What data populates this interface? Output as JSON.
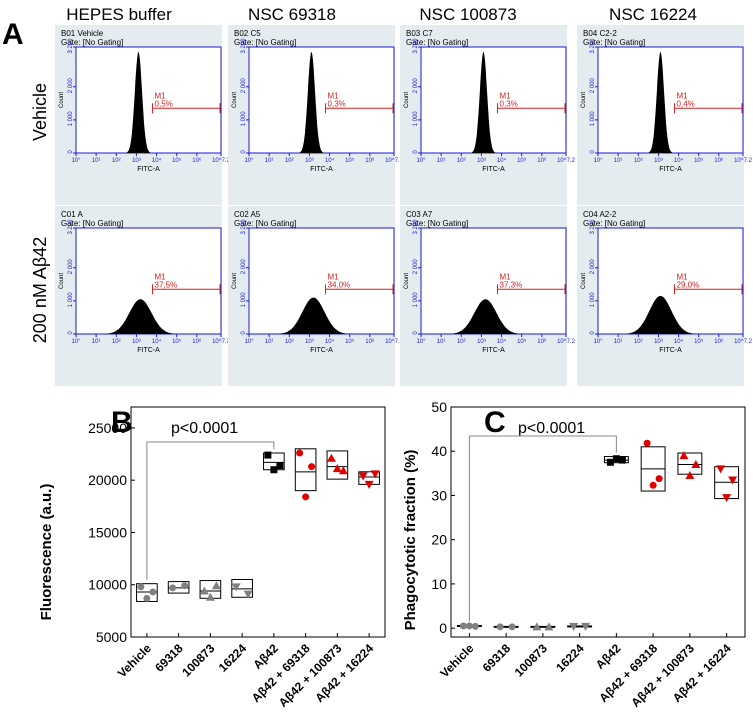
{
  "figure": {
    "panel_a_label": "A",
    "panel_b_label": "B",
    "panel_c_label": "C",
    "column_titles": [
      "HEPES buffer",
      "NSC 69318",
      "NSC 100873",
      "NSC 16224"
    ],
    "row_titles": [
      "Vehicle",
      "200 nM Aβ42"
    ]
  },
  "colors": {
    "panel_bg": "#e4ecef",
    "axis_blue": "#1a1ad8",
    "marker_red": "#d42020",
    "histogram_fill": "#000000",
    "gray_points": "#808080",
    "black_points": "#000000",
    "red_points": "#e00000"
  },
  "chart_data": [
    {
      "type": "histogram",
      "panel": "A",
      "xlabel": "FITC-A",
      "ylabel": "Count",
      "gate_text": "Gate: [No Gating]",
      "marker_label": "M1",
      "xlim_log10": [
        0,
        7.2
      ],
      "x_ticks": [
        "10°",
        "10¹",
        "10²",
        "10³",
        "10⁴",
        "10⁵",
        "10⁶",
        "10^7.2"
      ],
      "ylim": [
        0,
        3200
      ],
      "y_ticks": [
        "0",
        "1 000",
        "2 000",
        "3 200"
      ],
      "rows": [
        {
          "condition": "Vehicle",
          "wells": [
            {
              "title": "B01 Vehicle",
              "m1_percent": "0,5%",
              "peak_log10": 3.1,
              "width": 0.18,
              "height": 3050
            },
            {
              "title": "B02 C5",
              "m1_percent": "0,3%",
              "peak_log10": 3.1,
              "width": 0.18,
              "height": 3050
            },
            {
              "title": "B03 C7",
              "m1_percent": "0,3%",
              "peak_log10": 3.1,
              "width": 0.18,
              "height": 3050
            },
            {
              "title": "B04 C2-2",
              "m1_percent": "0,4%",
              "peak_log10": 3.1,
              "width": 0.18,
              "height": 3050
            }
          ]
        },
        {
          "condition": "200 nM Aβ42",
          "wells": [
            {
              "title": "C01 A",
              "m1_percent": "37,5%",
              "peak_log10": 3.2,
              "width": 0.55,
              "height": 1050
            },
            {
              "title": "C02 A5",
              "m1_percent": "34,0%",
              "peak_log10": 3.2,
              "width": 0.55,
              "height": 1100
            },
            {
              "title": "C03 A7",
              "m1_percent": "37,3%",
              "peak_log10": 3.2,
              "width": 0.55,
              "height": 1050
            },
            {
              "title": "C04 A2-2",
              "m1_percent": "29,0%",
              "peak_log10": 3.1,
              "width": 0.55,
              "height": 1150
            }
          ]
        }
      ],
      "m1_gate_range_log10": [
        3.8,
        7.2
      ]
    },
    {
      "type": "box",
      "panel": "B",
      "ylabel": "Fluorescence (a.u.)",
      "ylim": [
        5000,
        27000
      ],
      "y_ticks": [
        5000,
        10000,
        15000,
        20000,
        25000
      ],
      "categories": [
        "Vehicle",
        "69318",
        "100873",
        "16224",
        "Aβ42",
        "Aβ42 + 69318",
        "Aβ42 + 100873",
        "Aβ42 + 16224"
      ],
      "annotation": "p<0.0001",
      "boxes": [
        {
          "q1": 8400,
          "median": 9300,
          "q3": 10100,
          "points": [
            9800,
            9300,
            8700
          ],
          "marker": "circle",
          "color": "gray"
        },
        {
          "q1": 9200,
          "median": 9700,
          "q3": 10300,
          "points": [
            9700,
            9900
          ],
          "marker": "circle",
          "color": "gray"
        },
        {
          "q1": 8700,
          "median": 9400,
          "q3": 10400,
          "points": [
            9400,
            9900,
            8800
          ],
          "marker": "triangle",
          "color": "gray"
        },
        {
          "q1": 8800,
          "median": 9600,
          "q3": 10500,
          "points": [
            9800,
            9100
          ],
          "marker": "triangle-down",
          "color": "gray"
        },
        {
          "q1": 21000,
          "median": 21700,
          "q3": 22600,
          "points": [
            22400,
            21400,
            21000
          ],
          "marker": "square",
          "color": "black"
        },
        {
          "q1": 19000,
          "median": 20800,
          "q3": 23000,
          "points": [
            22600,
            21300,
            18400
          ],
          "marker": "circle",
          "color": "red"
        },
        {
          "q1": 20100,
          "median": 21300,
          "q3": 22800,
          "points": [
            22100,
            20900,
            21100
          ],
          "marker": "triangle",
          "color": "red"
        },
        {
          "q1": 19600,
          "median": 20300,
          "q3": 20800,
          "points": [
            20400,
            20600,
            19600
          ],
          "marker": "triangle-down",
          "color": "red"
        }
      ]
    },
    {
      "type": "box",
      "panel": "C",
      "ylabel": "Phagocytotic fraction (%)",
      "ylim": [
        -2,
        50
      ],
      "y_ticks": [
        0,
        10,
        20,
        30,
        40,
        50
      ],
      "categories": [
        "Vehicle",
        "69318",
        "100873",
        "16224",
        "Aβ42",
        "Aβ42 + 69318",
        "Aβ42 + 100873",
        "Aβ42 + 16224"
      ],
      "annotation": "p<0.0001",
      "boxes": [
        {
          "q1": 0.4,
          "median": 0.5,
          "q3": 0.6,
          "points": [
            0.5,
            0.4,
            0.5
          ],
          "marker": "circle",
          "color": "gray"
        },
        {
          "q1": 0.3,
          "median": 0.3,
          "q3": 0.4,
          "points": [
            0.3,
            0.3
          ],
          "marker": "circle",
          "color": "gray"
        },
        {
          "q1": 0.3,
          "median": 0.3,
          "q3": 0.4,
          "points": [
            0.3,
            0.3
          ],
          "marker": "triangle",
          "color": "gray"
        },
        {
          "q1": 0.3,
          "median": 0.4,
          "q3": 0.5,
          "points": [
            0.4,
            0.4
          ],
          "marker": "triangle-down",
          "color": "gray"
        },
        {
          "q1": 37.4,
          "median": 38.0,
          "q3": 38.8,
          "points": [
            37.5,
            38.0,
            38.3
          ],
          "marker": "square",
          "color": "black"
        },
        {
          "q1": 31.0,
          "median": 36.0,
          "q3": 41.0,
          "points": [
            41.8,
            33.8,
            32.3
          ],
          "marker": "circle",
          "color": "red"
        },
        {
          "q1": 34.8,
          "median": 37.0,
          "q3": 39.6,
          "points": [
            39.0,
            37.0,
            34.5
          ],
          "marker": "triangle",
          "color": "red"
        },
        {
          "q1": 29.3,
          "median": 33.0,
          "q3": 36.5,
          "points": [
            36.0,
            33.5,
            29.5
          ],
          "marker": "triangle-down",
          "color": "red"
        }
      ]
    }
  ]
}
